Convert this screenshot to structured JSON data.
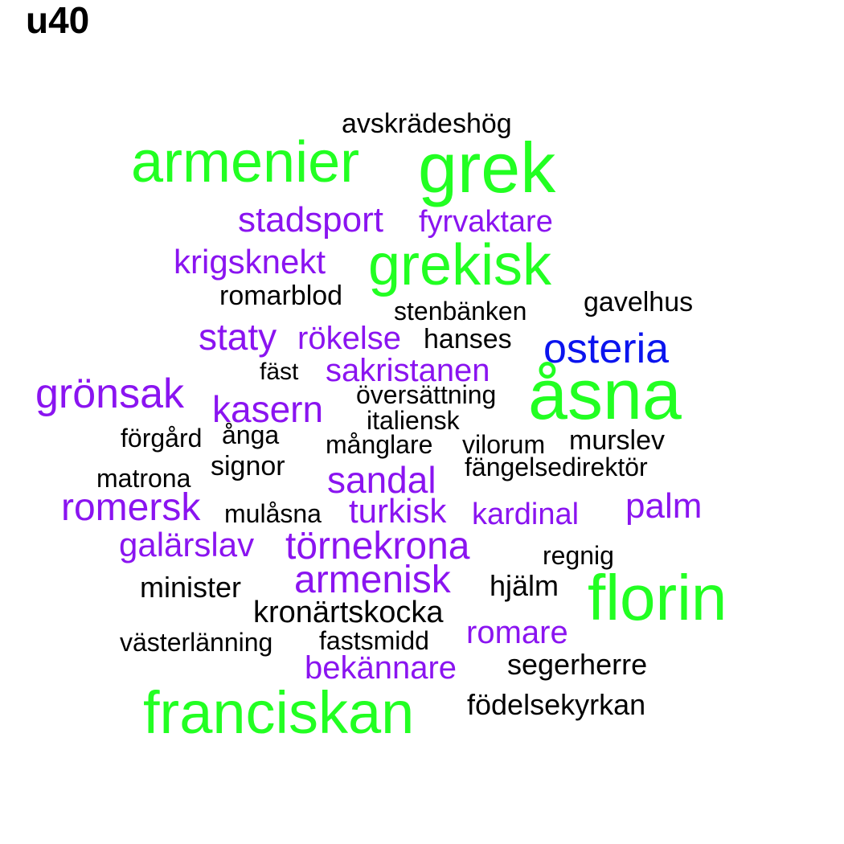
{
  "title": "u40",
  "colors": {
    "green": "#22ff22",
    "purple": "#8a14f0",
    "blue": "#0a14ee",
    "black": "#000000"
  },
  "words": [
    {
      "text": "avskrädeshög",
      "color": "black"
    },
    {
      "text": "armenier",
      "color": "green"
    },
    {
      "text": "grek",
      "color": "green"
    },
    {
      "text": "stadsport",
      "color": "purple"
    },
    {
      "text": "fyrvaktare",
      "color": "purple"
    },
    {
      "text": "krigsknekt",
      "color": "purple"
    },
    {
      "text": "grekisk",
      "color": "green"
    },
    {
      "text": "romarblod",
      "color": "black"
    },
    {
      "text": "stenbänken",
      "color": "black"
    },
    {
      "text": "gavelhus",
      "color": "black"
    },
    {
      "text": "staty",
      "color": "purple"
    },
    {
      "text": "rökelse",
      "color": "purple"
    },
    {
      "text": "hanses",
      "color": "black"
    },
    {
      "text": "osteria",
      "color": "blue"
    },
    {
      "text": "fäst",
      "color": "black"
    },
    {
      "text": "sakristanen",
      "color": "purple"
    },
    {
      "text": "åsna",
      "color": "green"
    },
    {
      "text": "grönsak",
      "color": "purple"
    },
    {
      "text": "översättning",
      "color": "black"
    },
    {
      "text": "kasern",
      "color": "purple"
    },
    {
      "text": "italiensk",
      "color": "black"
    },
    {
      "text": "förgård",
      "color": "black"
    },
    {
      "text": "ånga",
      "color": "black"
    },
    {
      "text": "månglare",
      "color": "black"
    },
    {
      "text": "vilorum",
      "color": "black"
    },
    {
      "text": "murslev",
      "color": "black"
    },
    {
      "text": "signor",
      "color": "black"
    },
    {
      "text": "fängelsedirektör",
      "color": "black"
    },
    {
      "text": "matrona",
      "color": "black"
    },
    {
      "text": "sandal",
      "color": "purple"
    },
    {
      "text": "romersk",
      "color": "purple"
    },
    {
      "text": "mulåsna",
      "color": "black"
    },
    {
      "text": "turkisk",
      "color": "purple"
    },
    {
      "text": "kardinal",
      "color": "purple"
    },
    {
      "text": "palm",
      "color": "purple"
    },
    {
      "text": "galärslav",
      "color": "purple"
    },
    {
      "text": "törnekrona",
      "color": "purple"
    },
    {
      "text": "regnig",
      "color": "black"
    },
    {
      "text": "armenisk",
      "color": "purple"
    },
    {
      "text": "minister",
      "color": "black"
    },
    {
      "text": "hjälm",
      "color": "black"
    },
    {
      "text": "florin",
      "color": "green"
    },
    {
      "text": "kronärtskocka",
      "color": "black"
    },
    {
      "text": "romare",
      "color": "purple"
    },
    {
      "text": "västerlänning",
      "color": "black"
    },
    {
      "text": "fastsmidd",
      "color": "black"
    },
    {
      "text": "bekännare",
      "color": "purple"
    },
    {
      "text": "segerherre",
      "color": "black"
    },
    {
      "text": "franciskan",
      "color": "green"
    },
    {
      "text": "födelsekyrkan",
      "color": "black"
    }
  ]
}
